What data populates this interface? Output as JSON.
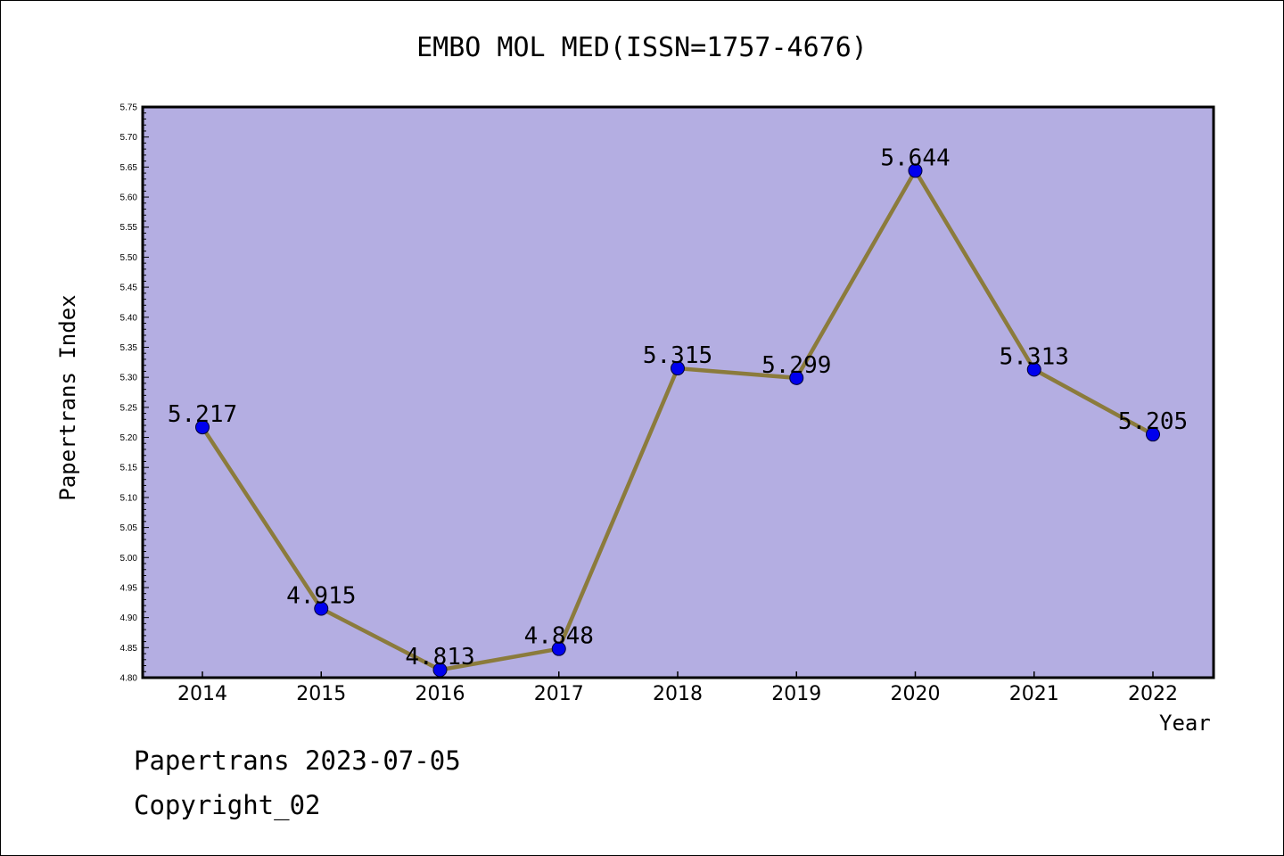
{
  "chart_data": {
    "type": "line",
    "title": "EMBO MOL MED(ISSN=1757-4676)",
    "xlabel": "Year",
    "ylabel": "Papertrans Index",
    "categories": [
      "2014",
      "2015",
      "2016",
      "2017",
      "2018",
      "2019",
      "2020",
      "2021",
      "2022"
    ],
    "values": [
      5.217,
      4.915,
      4.813,
      4.848,
      5.315,
      5.299,
      5.644,
      5.313,
      5.205
    ],
    "value_labels": [
      "5.217",
      "4.915",
      "4.813",
      "4.848",
      "5.315",
      "5.299",
      "5.644",
      "5.313",
      "5.205"
    ],
    "ylim": [
      4.8,
      5.75
    ],
    "y_ticks": [
      "4.80",
      "4.85",
      "4.90",
      "4.95",
      "5.00",
      "5.05",
      "5.10",
      "5.15",
      "5.20",
      "5.25",
      "5.30",
      "5.35",
      "5.40",
      "5.45",
      "5.50",
      "5.55",
      "5.60",
      "5.65",
      "5.70",
      "5.75"
    ],
    "grid": false,
    "legend": "none",
    "colors": {
      "plot_background": "#b4aee2",
      "line": "#8b7b3c",
      "marker": "#0000ee"
    }
  },
  "footer": {
    "line1": "Papertrans 2023-07-05",
    "line2": "Copyright_02"
  }
}
